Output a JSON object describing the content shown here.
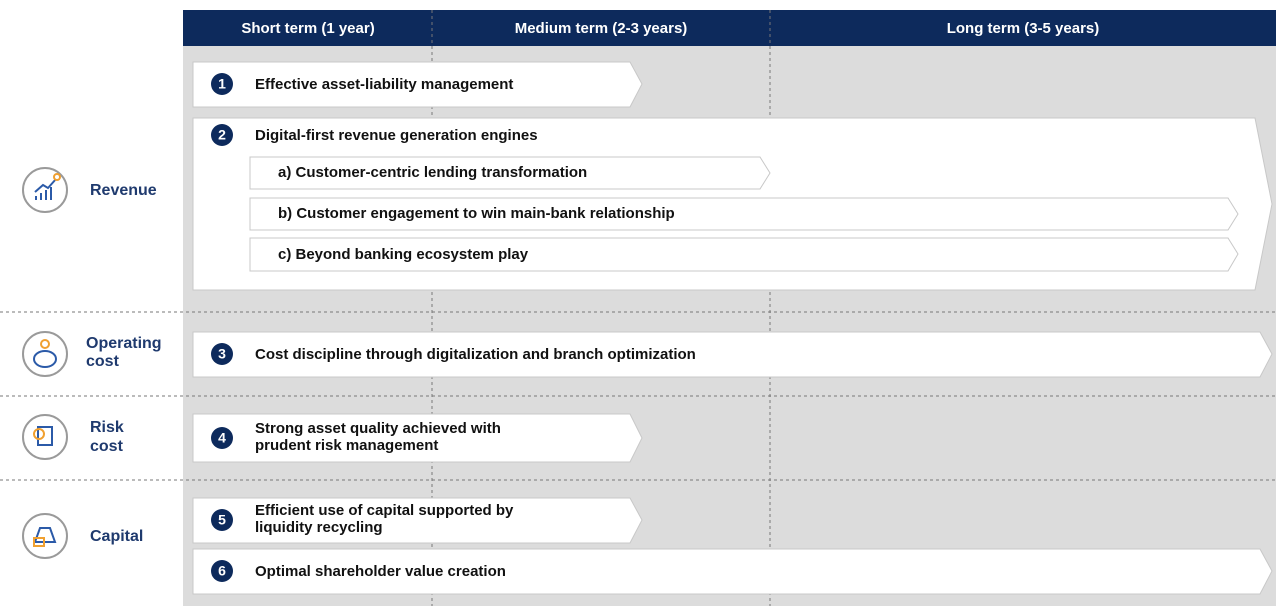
{
  "header": {
    "columns": [
      "Short term (1 year)",
      "Medium term (2-3 years)",
      "Long term (3-5 years)"
    ]
  },
  "sections": [
    {
      "label": [
        "Revenue"
      ]
    },
    {
      "label": [
        "Operating",
        "cost"
      ]
    },
    {
      "label": [
        "Risk",
        "cost"
      ]
    },
    {
      "label": [
        "Capital"
      ]
    }
  ],
  "initiatives": [
    {
      "number": "1",
      "text": [
        "Effective asset-liability management"
      ]
    },
    {
      "number": "2",
      "text": [
        "Digital-first revenue generation engines"
      ],
      "sub": [
        "a) Customer-centric lending transformation",
        "b) Customer engagement to win main-bank relationship",
        "c) Beyond banking ecosystem play"
      ]
    },
    {
      "number": "3",
      "text": [
        "Cost discipline through digitalization and branch optimization"
      ]
    },
    {
      "number": "4",
      "text": [
        "Strong asset quality achieved with",
        "prudent risk management"
      ]
    },
    {
      "number": "5",
      "text": [
        "Efficient use of capital supported by",
        "liquidity recycling"
      ]
    },
    {
      "number": "6",
      "text": [
        "Optimal shareholder value creation"
      ]
    }
  ]
}
